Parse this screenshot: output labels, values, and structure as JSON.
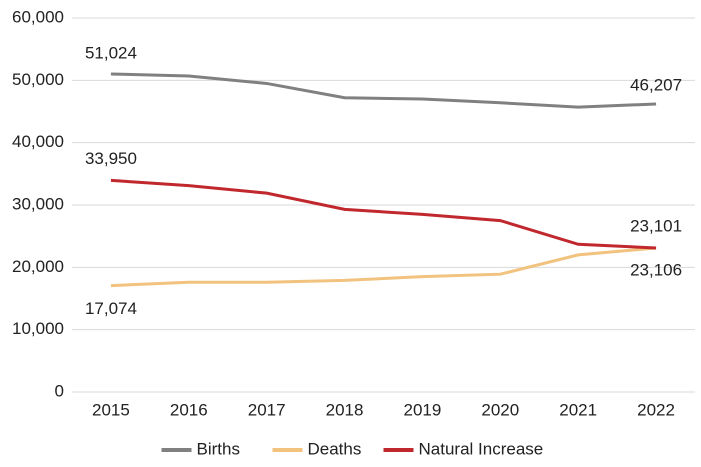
{
  "chart_data": {
    "type": "line",
    "categories": [
      "2015",
      "2016",
      "2017",
      "2018",
      "2019",
      "2020",
      "2021",
      "2022"
    ],
    "ylim": [
      0,
      60000
    ],
    "yticks": [
      0,
      {
        "value": 10000,
        "label": "10,000"
      },
      {
        "value": 20000,
        "label": "20,000"
      },
      {
        "value": 30000,
        "label": "30,000"
      },
      {
        "value": 40000,
        "label": "40,000"
      },
      {
        "value": 50000,
        "label": "50,000"
      },
      {
        "value": 60000,
        "label": "60,000"
      }
    ],
    "grid": true,
    "legend": "bottom",
    "series": [
      {
        "name": "Births",
        "color": "#808080",
        "values": [
          51024,
          50700,
          49500,
          47200,
          47000,
          46400,
          45700,
          46207
        ],
        "value_labels": [
          "51,024",
          null,
          null,
          null,
          null,
          null,
          null,
          "46,207"
        ]
      },
      {
        "name": "Deaths",
        "color": "#f2c27f",
        "values": [
          17074,
          17600,
          17600,
          17900,
          18500,
          18900,
          22000,
          23101
        ],
        "value_labels": [
          "17,074",
          null,
          null,
          null,
          null,
          null,
          null,
          "23,101"
        ]
      },
      {
        "name": "Natural Increase",
        "color": "#c0282d",
        "values": [
          33950,
          33100,
          31900,
          29300,
          28500,
          27500,
          23700,
          23106
        ],
        "value_labels": [
          "33,950",
          null,
          null,
          null,
          null,
          null,
          null,
          "23,106"
        ]
      }
    ]
  }
}
